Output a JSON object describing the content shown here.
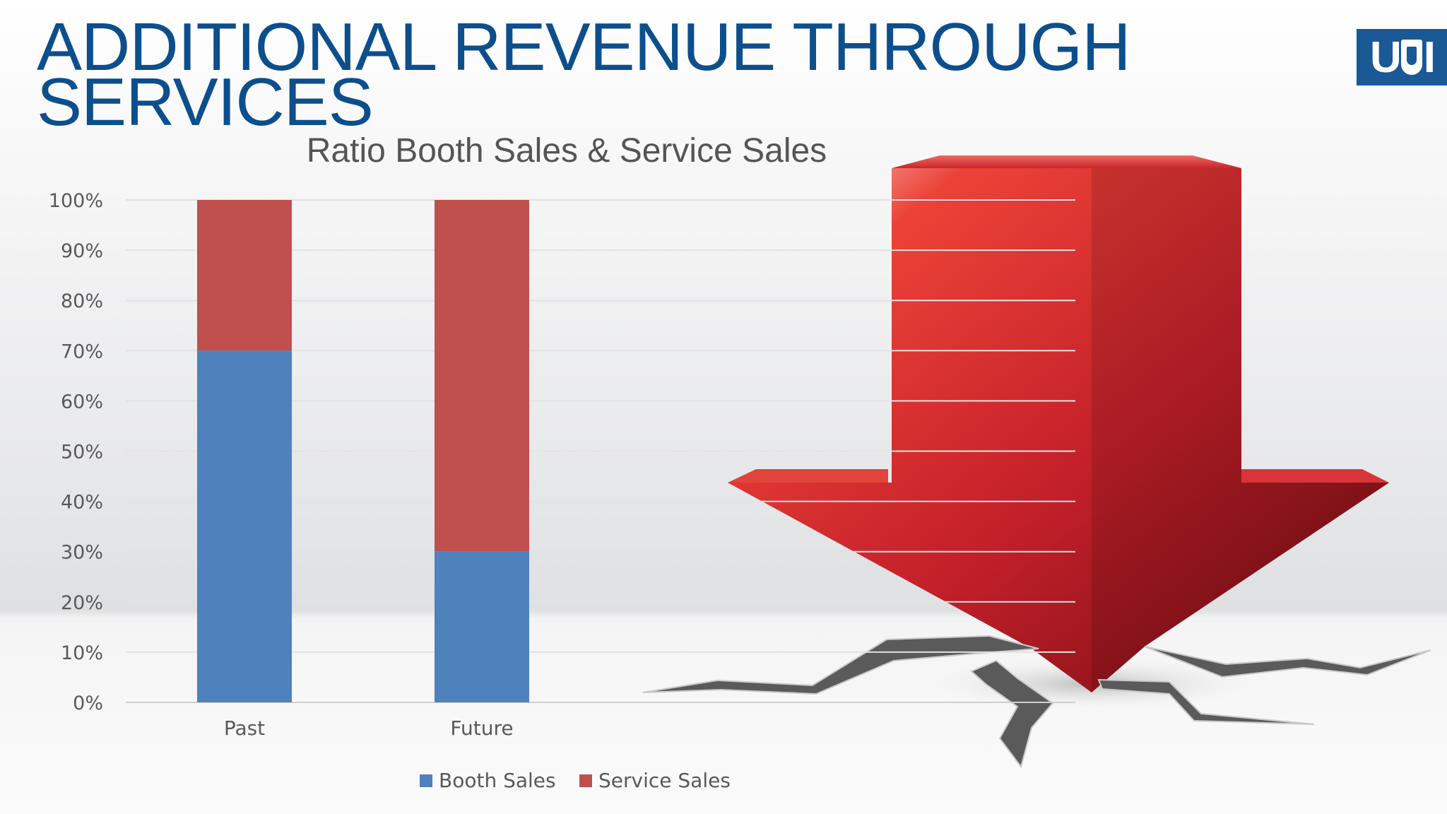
{
  "slide": {
    "title_line1": "ADDITIONAL REVENUE THROUGH",
    "title_line2": "SERVICES",
    "logo_text": "USI"
  },
  "colors": {
    "title": "#0d4e8c",
    "booth": "#4f81bd",
    "service": "#c0504d",
    "arrow": "#d32f2f"
  },
  "decor": {
    "arrow_icon": "down-arrow-icon",
    "crack_icon": "ground-crack-icon"
  },
  "chart_data": {
    "type": "bar",
    "stacked": true,
    "title": "Ratio Booth Sales & Service Sales",
    "categories": [
      "Past",
      "Future"
    ],
    "series": [
      {
        "name": "Booth Sales",
        "values": [
          70,
          30
        ],
        "color": "#4f81bd"
      },
      {
        "name": "Service Sales",
        "values": [
          30,
          70
        ],
        "color": "#c0504d"
      }
    ],
    "ylim": [
      0,
      100
    ],
    "y_ticks": [
      "0%",
      "10%",
      "20%",
      "30%",
      "40%",
      "50%",
      "60%",
      "70%",
      "80%",
      "90%",
      "100%"
    ],
    "xlabel": "",
    "ylabel": "",
    "grid": true,
    "legend": "bottom"
  }
}
